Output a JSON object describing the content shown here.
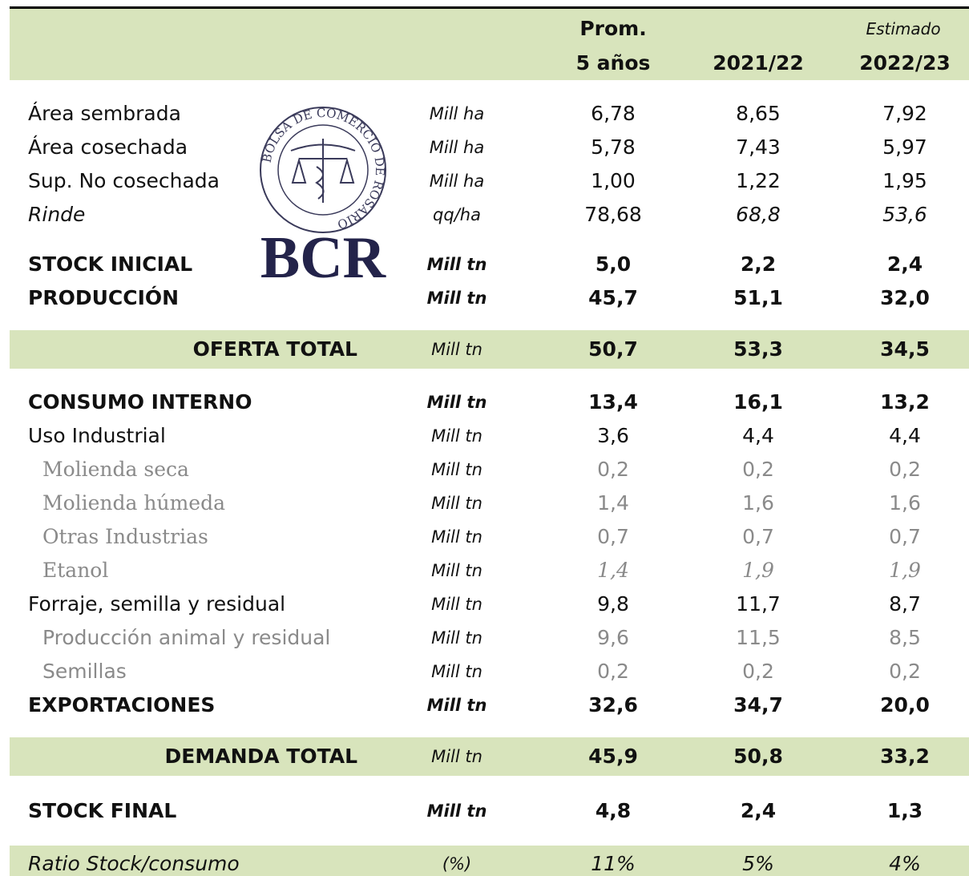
{
  "logo": {
    "seal_text": "BOLSA DE COMERCIO DE ROSARIO",
    "name": "BCR"
  },
  "table": {
    "header": [
      [
        "Prom.",
        "Estimado"
      ],
      [
        "5 años",
        "2021/22",
        "2022/23"
      ]
    ],
    "rows": [
      [
        "Área sembrada",
        "Mill ha",
        "6,78",
        "8,65",
        "7,92"
      ],
      [
        "Área cosechada",
        "Mill ha",
        "5,78",
        "7,43",
        "5,97"
      ],
      [
        "Sup. No cosechada",
        "Mill ha",
        "1,00",
        "1,22",
        "1,95"
      ],
      [
        "Rinde",
        "qq/ha",
        "78,68",
        "68,8",
        "53,6"
      ],
      [
        "STOCK INICIAL",
        "Mill tn",
        "5,0",
        "2,2",
        "2,4"
      ],
      [
        "PRODUCCIÓN",
        "Mill tn",
        "45,7",
        "51,1",
        "32,0"
      ],
      [
        "OFERTA TOTAL",
        "Mill tn",
        "50,7",
        "53,3",
        "34,5"
      ],
      [
        "CONSUMO INTERNO",
        "Mill tn",
        "13,4",
        "16,1",
        "13,2"
      ],
      [
        "Uso Industrial",
        "Mill tn",
        "3,6",
        "4,4",
        "4,4"
      ],
      [
        "Molienda seca",
        "Mill tn",
        "0,2",
        "0,2",
        "0,2"
      ],
      [
        "Molienda húmeda",
        "Mill tn",
        "1,4",
        "1,6",
        "1,6"
      ],
      [
        "Otras Industrias",
        "Mill tn",
        "0,7",
        "0,7",
        "0,7"
      ],
      [
        "Etanol",
        "Mill tn",
        "1,4",
        "1,9",
        "1,9"
      ],
      [
        "Forraje, semilla y residual",
        "Mill tn",
        "9,8",
        "11,7",
        "8,7"
      ],
      [
        "Producción animal y residual",
        "Mill tn",
        "9,6",
        "11,5",
        "8,5"
      ],
      [
        "Semillas",
        "Mill tn",
        "0,2",
        "0,2",
        "0,2"
      ],
      [
        "EXPORTACIONES",
        "Mill tn",
        "32,6",
        "34,7",
        "20,0"
      ],
      [
        "DEMANDA TOTAL",
        "Mill tn",
        "45,9",
        "50,8",
        "33,2"
      ],
      [
        "STOCK FINAL",
        "Mill tn",
        "4,8",
        "2,4",
        "1,3"
      ],
      [
        "Ratio Stock/consumo",
        "(%)",
        "11%",
        "5%",
        "4%"
      ]
    ]
  }
}
